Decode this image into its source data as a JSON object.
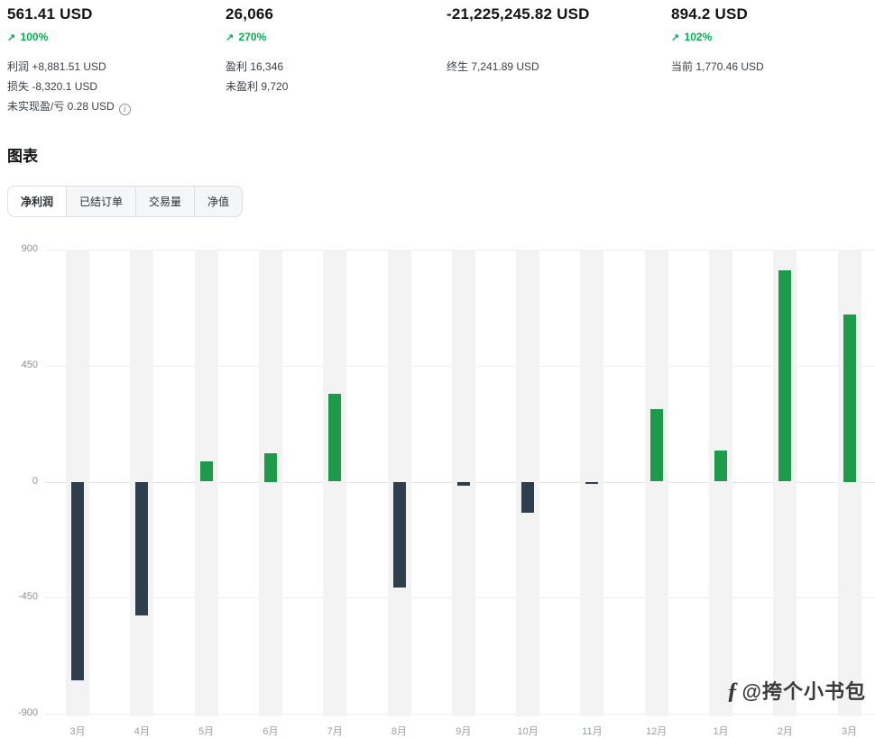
{
  "stats": [
    {
      "value": "561.41 USD",
      "change": "100%",
      "details": [
        {
          "label": "利润",
          "value": "+8,881.51 USD",
          "info": false
        },
        {
          "label": "损失",
          "value": "-8,320.1 USD",
          "info": false
        },
        {
          "label": "未实现盈/亏",
          "value": "0.28 USD",
          "info": true
        }
      ]
    },
    {
      "value": "26,066",
      "change": "270%",
      "details": [
        {
          "label": "盈利",
          "value": "16,346",
          "info": false
        },
        {
          "label": "未盈利",
          "value": "9,720",
          "info": false
        }
      ]
    },
    {
      "value": "-21,225,245.82 USD",
      "change": "",
      "details": [
        {
          "label": "终生",
          "value": "7,241.89 USD",
          "info": false
        }
      ]
    },
    {
      "value": "894.2 USD",
      "change": "102%",
      "details": [
        {
          "label": "当前",
          "value": "1,770.46 USD",
          "info": false
        }
      ]
    }
  ],
  "section_title": "图表",
  "tabs": [
    {
      "label": "净利润",
      "active": true
    },
    {
      "label": "已结订单",
      "active": false
    },
    {
      "label": "交易量",
      "active": false
    },
    {
      "label": "净值",
      "active": false
    }
  ],
  "chart_data": {
    "type": "bar",
    "title": "净利润",
    "categories": [
      "3月",
      "4月",
      "5月",
      "6月",
      "7月",
      "8月",
      "9月",
      "10月",
      "11月",
      "12月",
      "1月",
      "2月",
      "3月"
    ],
    "values": [
      -770,
      -520,
      80,
      110,
      340,
      -410,
      -15,
      -120,
      -8,
      280,
      120,
      820,
      650
    ],
    "xlabel": "",
    "ylabel": "",
    "ylim": [
      -900,
      900
    ],
    "yticks": [
      900,
      450,
      0,
      -450,
      -900
    ],
    "grid": true,
    "positive_color": "#1d9b49",
    "negative_color": "#2f3e4d",
    "band_color": "#f3f3f4"
  },
  "icons": {
    "trend_up": "↗",
    "info": "i"
  },
  "colors": {
    "change_green": "#00b14e"
  },
  "watermark": {
    "logo": "ƒ",
    "text": "@挎个小书包"
  }
}
